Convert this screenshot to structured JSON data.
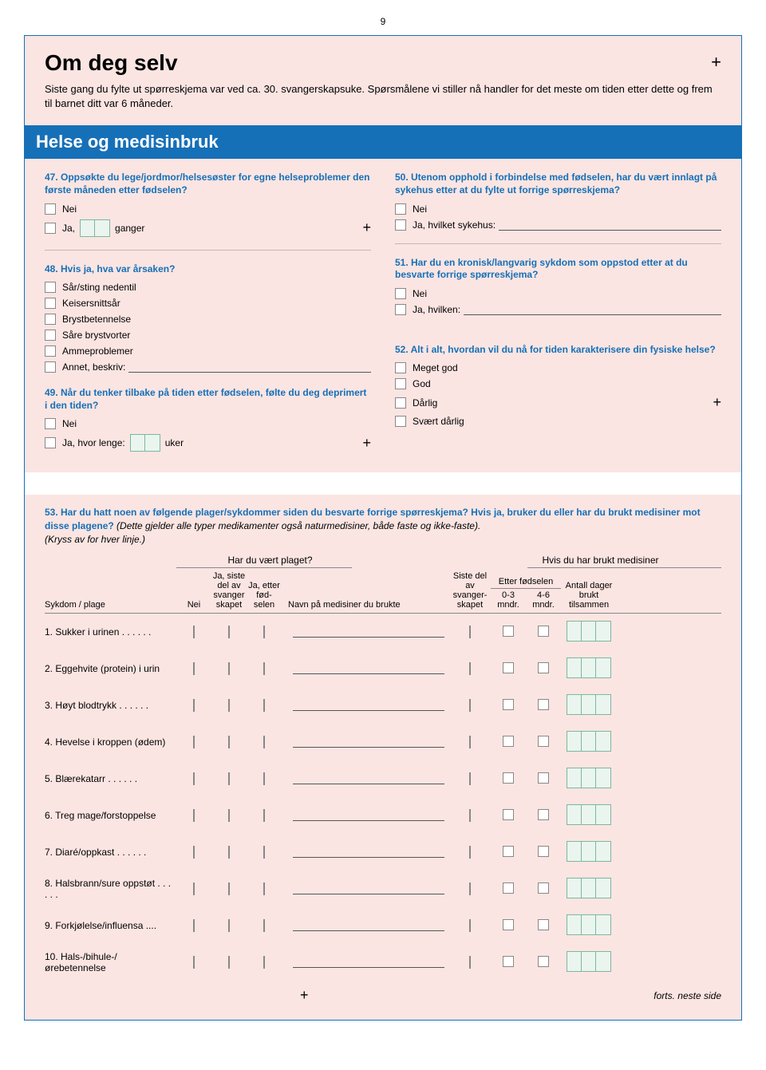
{
  "page_number": "9",
  "main_title": "Om deg selv",
  "intro": "Siste gang du fylte ut spørreskjema var ved ca. 30. svangerskapsuke. Spørsmålene vi stiller nå handler for det meste om tiden etter dette og frem til barnet ditt var 6 måneder.",
  "section_title": "Helse og medisinbruk",
  "q47": {
    "text": "47. Oppsøkte du lege/jordmor/helsesøster for egne helse­problemer den første måneden etter fødselen?",
    "nei": "Nei",
    "ja": "Ja,",
    "unit": "ganger"
  },
  "q48": {
    "text": "48. Hvis ja, hva var årsaken?",
    "opts": [
      "Sår/sting nedentil",
      "Keisersnittsår",
      "Brystbetennelse",
      "Såre brystvorter",
      "Ammeproblemer",
      "Annet, beskriv:"
    ]
  },
  "q49": {
    "text": "49. Når du tenker tilbake på tiden etter fødselen, følte du deg deprimert i den tiden?",
    "nei": "Nei",
    "ja": "Ja, hvor lenge:",
    "unit": "uker"
  },
  "q50": {
    "text": "50. Utenom opphold i forbindelse med fødselen, har du vært innlagt på sykehus etter at du fylte ut forrige spørreskjema?",
    "nei": "Nei",
    "ja": "Ja, hvilket sykehus:"
  },
  "q51": {
    "text": "51. Har du en kronisk/langvarig sykdom som oppstod etter at du besvarte forrige spørreskjema?",
    "nei": "Nei",
    "ja": "Ja, hvilken:"
  },
  "q52": {
    "text": "52. Alt i alt, hvordan vil du nå for tiden karakterisere din fysiske helse?",
    "opts": [
      "Meget god",
      "God",
      "Dårlig",
      "Svært dårlig"
    ]
  },
  "q53": {
    "lead_blue": "53. Har du hatt noen av følgende plager/sykdommer siden du besvarte forrige spørreskjema? Hvis ja, bruker du eller har du brukt medisiner mot disse plagene?",
    "lead_italic": "(Dette gjelder alle typer medikamenter også naturmedisiner, både faste og ikke-faste).",
    "lead_plain": "(Kryss av for hver linje.)",
    "group_left": "Har du vært plaget?",
    "group_right": "Hvis du har brukt medisiner",
    "h_disease": "Sykdom / plage",
    "h_nei": "Nei",
    "h_col2": "Ja, siste del av svanger skapet",
    "h_col3": "Ja, etter fød- selen",
    "h_medname": "Navn på medisiner du brukte",
    "h_col5": "Siste del av svanger- skapet",
    "h_afterbirth": "Etter fødselen",
    "h_col6": "0-3 mndr.",
    "h_col7": "4-6 mndr.",
    "h_col8": "Antall dager brukt tilsammen",
    "rows": [
      "1. Sukker i urinen",
      "2. Eggehvite (protein) i urin",
      "3. Høyt blodtrykk",
      "4. Hevelse i kroppen (ødem)",
      "5. Blærekatarr",
      "6. Treg mage/forstoppelse",
      "7. Diaré/oppkast",
      "8. Halsbrann/sure oppstøt",
      "9. Forkjølelse/influensa",
      "10. Hals-/bihule-/ørebetennelse"
    ],
    "forts": "forts. neste side"
  },
  "colors": {
    "blue": "#1670b8",
    "pink": "#fbe5e2",
    "green_border": "#7db89d",
    "green_fill": "#eaf5ef"
  }
}
